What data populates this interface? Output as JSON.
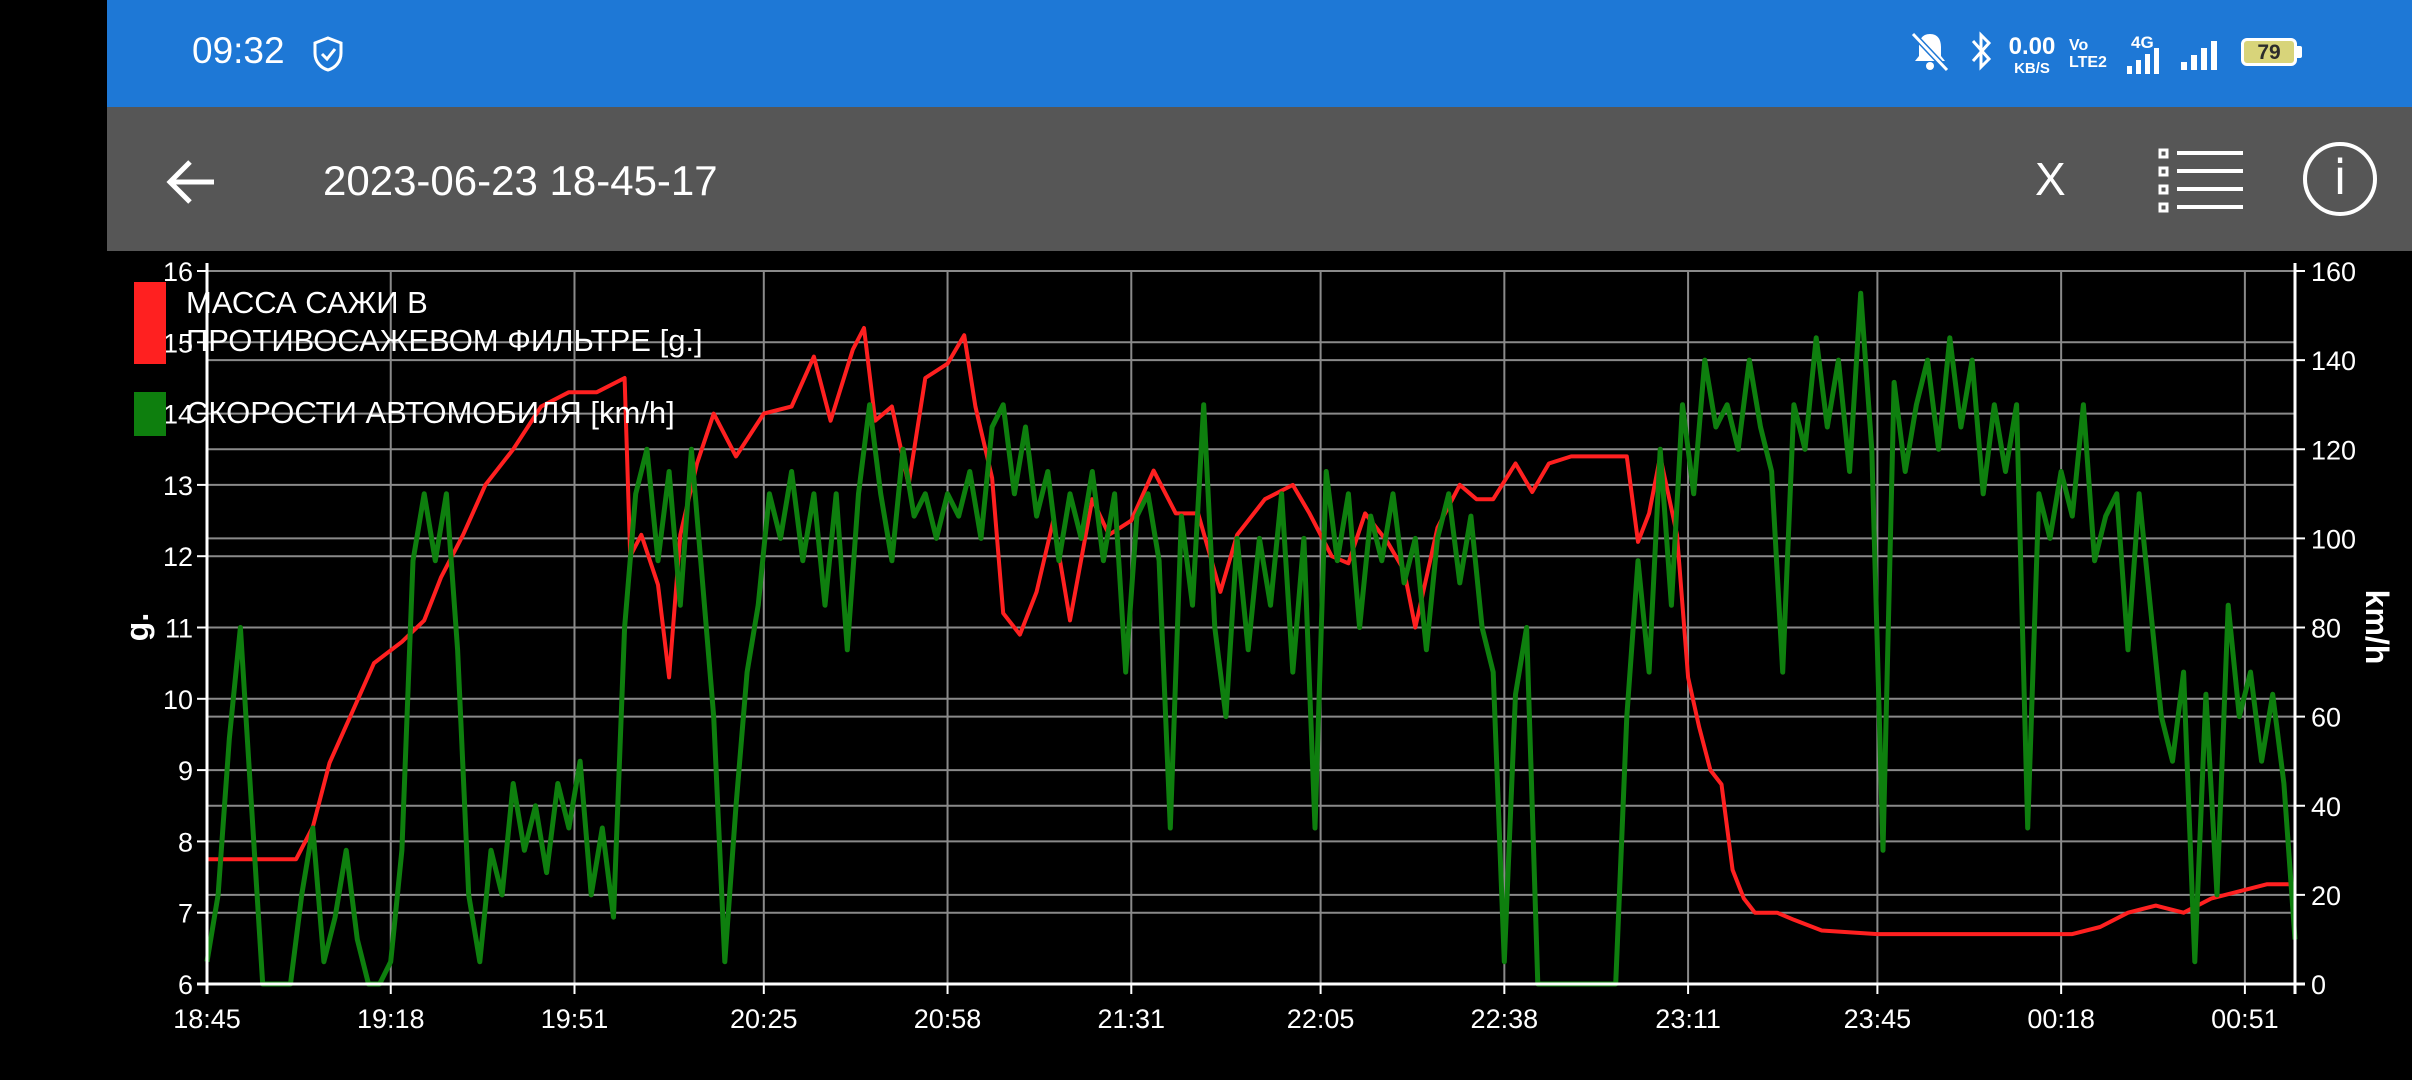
{
  "status_bar": {
    "time": "09:32",
    "net_speed": "0.00",
    "net_unit": "KB/S",
    "volte_top": "Vo",
    "volte_bottom": "LTE2",
    "network": "4G",
    "battery": "79",
    "icons": [
      "shield-check-icon",
      "bell-off-icon",
      "bluetooth-icon",
      "signal-icon",
      "signal-icon",
      "battery-icon"
    ],
    "color": "#1e78d6"
  },
  "app_bar": {
    "title": "2023-06-23 18-45-17",
    "close_label": "X",
    "info_label": "i",
    "icons": [
      "back-arrow-icon",
      "list-icon",
      "info-icon"
    ],
    "color": "#565656"
  },
  "chart_data": {
    "type": "line",
    "grid": true,
    "background": "#000000",
    "x_ticks": [
      "18:45",
      "19:18",
      "19:51",
      "20:25",
      "20:58",
      "21:31",
      "22:05",
      "22:38",
      "23:11",
      "23:45",
      "00:18",
      "00:51"
    ],
    "x_range": [
      "18:45",
      "01:00"
    ],
    "y_left": {
      "label": "g.",
      "range": [
        6,
        16
      ],
      "ticks": [
        6,
        7,
        8,
        9,
        10,
        11,
        12,
        13,
        14,
        15,
        16
      ]
    },
    "y_right": {
      "label": "km/h",
      "range": [
        0,
        160
      ],
      "ticks": [
        0,
        20,
        40,
        60,
        80,
        100,
        120,
        140,
        160
      ]
    },
    "legend_position": "top-left",
    "series": [
      {
        "name": "МАССА САЖИ В ПРОТИВОСАЖЕВОМ ФИЛЬТРЕ [g.]",
        "legend_lines": [
          "МАССА САЖИ В",
          "ПРОТИВОСАЖЕВОМ ФИЛЬТРЕ [g.]"
        ],
        "axis": "left",
        "color": "#ff2020",
        "points": [
          [
            "18:45",
            7.75
          ],
          [
            "19:01",
            7.75
          ],
          [
            "19:04",
            8.2
          ],
          [
            "19:07",
            9.1
          ],
          [
            "19:11",
            9.8
          ],
          [
            "19:15",
            10.5
          ],
          [
            "19:20",
            10.8
          ],
          [
            "19:24",
            11.1
          ],
          [
            "19:27",
            11.7
          ],
          [
            "19:31",
            12.3
          ],
          [
            "19:35",
            13.0
          ],
          [
            "19:40",
            13.5
          ],
          [
            "19:45",
            14.1
          ],
          [
            "19:50",
            14.3
          ],
          [
            "19:55",
            14.3
          ],
          [
            "20:00",
            14.5
          ],
          [
            "20:01",
            12.0
          ],
          [
            "20:03",
            12.3
          ],
          [
            "20:06",
            11.6
          ],
          [
            "20:08",
            10.3
          ],
          [
            "20:10",
            12.3
          ],
          [
            "20:13",
            13.3
          ],
          [
            "20:16",
            14.0
          ],
          [
            "20:20",
            13.4
          ],
          [
            "20:25",
            14.0
          ],
          [
            "20:30",
            14.1
          ],
          [
            "20:34",
            14.8
          ],
          [
            "20:37",
            13.9
          ],
          [
            "20:41",
            14.9
          ],
          [
            "20:43",
            15.2
          ],
          [
            "20:45",
            13.9
          ],
          [
            "20:48",
            14.1
          ],
          [
            "20:51",
            13.0
          ],
          [
            "20:54",
            14.5
          ],
          [
            "20:58",
            14.7
          ],
          [
            "21:01",
            15.1
          ],
          [
            "21:03",
            14.1
          ],
          [
            "21:06",
            13.1
          ],
          [
            "21:08",
            11.2
          ],
          [
            "21:11",
            10.9
          ],
          [
            "21:14",
            11.5
          ],
          [
            "21:17",
            12.5
          ],
          [
            "21:20",
            11.1
          ],
          [
            "21:24",
            12.8
          ],
          [
            "21:27",
            12.3
          ],
          [
            "21:31",
            12.5
          ],
          [
            "21:35",
            13.2
          ],
          [
            "21:39",
            12.6
          ],
          [
            "21:43",
            12.6
          ],
          [
            "21:47",
            11.5
          ],
          [
            "21:50",
            12.3
          ],
          [
            "21:55",
            12.8
          ],
          [
            "22:00",
            13.0
          ],
          [
            "22:03",
            12.6
          ],
          [
            "22:07",
            12.0
          ],
          [
            "22:10",
            11.9
          ],
          [
            "22:13",
            12.6
          ],
          [
            "22:17",
            12.2
          ],
          [
            "22:20",
            11.8
          ],
          [
            "22:22",
            11.0
          ],
          [
            "22:26",
            12.4
          ],
          [
            "22:30",
            13.0
          ],
          [
            "22:33",
            12.8
          ],
          [
            "22:36",
            12.8
          ],
          [
            "22:40",
            13.3
          ],
          [
            "22:43",
            12.9
          ],
          [
            "22:46",
            13.3
          ],
          [
            "22:50",
            13.4
          ],
          [
            "22:55",
            13.4
          ],
          [
            "23:00",
            13.4
          ],
          [
            "23:02",
            12.2
          ],
          [
            "23:04",
            12.6
          ],
          [
            "23:06",
            13.4
          ],
          [
            "23:09",
            12.3
          ],
          [
            "23:11",
            10.3
          ],
          [
            "23:13",
            9.6
          ],
          [
            "23:15",
            9.0
          ],
          [
            "23:17",
            8.8
          ],
          [
            "23:19",
            7.6
          ],
          [
            "23:21",
            7.2
          ],
          [
            "23:23",
            7.0
          ],
          [
            "23:27",
            7.0
          ],
          [
            "23:30",
            6.9
          ],
          [
            "23:35",
            6.75
          ],
          [
            "23:45",
            6.7
          ],
          [
            "23:55",
            6.7
          ],
          [
            "00:05",
            6.7
          ],
          [
            "00:15",
            6.7
          ],
          [
            "00:20",
            6.7
          ],
          [
            "00:25",
            6.8
          ],
          [
            "00:30",
            7.0
          ],
          [
            "00:35",
            7.1
          ],
          [
            "00:40",
            7.0
          ],
          [
            "00:45",
            7.2
          ],
          [
            "00:50",
            7.3
          ],
          [
            "00:55",
            7.4
          ],
          [
            "01:00",
            7.4
          ]
        ]
      },
      {
        "name": "СКОРОСТИ АВТОМОБИЛЯ [km/h]",
        "legend_lines": [
          "СКОРОСТИ АВТОМОБИЛЯ [km/h]"
        ],
        "axis": "right",
        "color": "#0e7f0e",
        "points": [
          [
            "18:45",
            5
          ],
          [
            "18:47",
            20
          ],
          [
            "18:49",
            55
          ],
          [
            "18:51",
            80
          ],
          [
            "18:53",
            40
          ],
          [
            "18:55",
            0
          ],
          [
            "18:57",
            0
          ],
          [
            "19:00",
            0
          ],
          [
            "19:02",
            20
          ],
          [
            "19:04",
            35
          ],
          [
            "19:06",
            5
          ],
          [
            "19:08",
            15
          ],
          [
            "19:10",
            30
          ],
          [
            "19:12",
            10
          ],
          [
            "19:14",
            0
          ],
          [
            "19:16",
            0
          ],
          [
            "19:18",
            5
          ],
          [
            "19:20",
            30
          ],
          [
            "19:22",
            95
          ],
          [
            "19:24",
            110
          ],
          [
            "19:26",
            95
          ],
          [
            "19:28",
            110
          ],
          [
            "19:30",
            75
          ],
          [
            "19:32",
            20
          ],
          [
            "19:34",
            5
          ],
          [
            "19:36",
            30
          ],
          [
            "19:38",
            20
          ],
          [
            "19:40",
            45
          ],
          [
            "19:42",
            30
          ],
          [
            "19:44",
            40
          ],
          [
            "19:46",
            25
          ],
          [
            "19:48",
            45
          ],
          [
            "19:50",
            35
          ],
          [
            "19:52",
            50
          ],
          [
            "19:54",
            20
          ],
          [
            "19:56",
            35
          ],
          [
            "19:58",
            15
          ],
          [
            "20:00",
            80
          ],
          [
            "20:02",
            110
          ],
          [
            "20:04",
            120
          ],
          [
            "20:06",
            95
          ],
          [
            "20:08",
            115
          ],
          [
            "20:10",
            85
          ],
          [
            "20:12",
            120
          ],
          [
            "20:14",
            90
          ],
          [
            "20:16",
            60
          ],
          [
            "20:18",
            5
          ],
          [
            "20:20",
            40
          ],
          [
            "20:22",
            70
          ],
          [
            "20:24",
            85
          ],
          [
            "20:26",
            110
          ],
          [
            "20:28",
            100
          ],
          [
            "20:30",
            115
          ],
          [
            "20:32",
            95
          ],
          [
            "20:34",
            110
          ],
          [
            "20:36",
            85
          ],
          [
            "20:38",
            110
          ],
          [
            "20:40",
            75
          ],
          [
            "20:42",
            110
          ],
          [
            "20:44",
            130
          ],
          [
            "20:46",
            110
          ],
          [
            "20:48",
            95
          ],
          [
            "20:50",
            120
          ],
          [
            "20:52",
            105
          ],
          [
            "20:54",
            110
          ],
          [
            "20:56",
            100
          ],
          [
            "20:58",
            110
          ],
          [
            "21:00",
            105
          ],
          [
            "21:02",
            115
          ],
          [
            "21:04",
            100
          ],
          [
            "21:06",
            125
          ],
          [
            "21:08",
            130
          ],
          [
            "21:10",
            110
          ],
          [
            "21:12",
            125
          ],
          [
            "21:14",
            105
          ],
          [
            "21:16",
            115
          ],
          [
            "21:18",
            95
          ],
          [
            "21:20",
            110
          ],
          [
            "21:22",
            100
          ],
          [
            "21:24",
            115
          ],
          [
            "21:26",
            95
          ],
          [
            "21:28",
            110
          ],
          [
            "21:30",
            70
          ],
          [
            "21:32",
            105
          ],
          [
            "21:34",
            110
          ],
          [
            "21:36",
            95
          ],
          [
            "21:38",
            35
          ],
          [
            "21:40",
            105
          ],
          [
            "21:42",
            85
          ],
          [
            "21:44",
            130
          ],
          [
            "21:46",
            80
          ],
          [
            "21:48",
            60
          ],
          [
            "21:50",
            100
          ],
          [
            "21:52",
            75
          ],
          [
            "21:54",
            100
          ],
          [
            "21:56",
            85
          ],
          [
            "21:58",
            110
          ],
          [
            "22:00",
            70
          ],
          [
            "22:02",
            100
          ],
          [
            "22:04",
            35
          ],
          [
            "22:06",
            115
          ],
          [
            "22:08",
            95
          ],
          [
            "22:10",
            110
          ],
          [
            "22:12",
            80
          ],
          [
            "22:14",
            105
          ],
          [
            "22:16",
            95
          ],
          [
            "22:18",
            110
          ],
          [
            "22:20",
            90
          ],
          [
            "22:22",
            100
          ],
          [
            "22:24",
            75
          ],
          [
            "22:26",
            100
          ],
          [
            "22:28",
            110
          ],
          [
            "22:30",
            90
          ],
          [
            "22:32",
            105
          ],
          [
            "22:34",
            80
          ],
          [
            "22:36",
            70
          ],
          [
            "22:38",
            5
          ],
          [
            "22:40",
            65
          ],
          [
            "22:42",
            80
          ],
          [
            "22:44",
            0
          ],
          [
            "22:46",
            0
          ],
          [
            "22:50",
            0
          ],
          [
            "22:55",
            0
          ],
          [
            "22:58",
            0
          ],
          [
            "23:00",
            60
          ],
          [
            "23:02",
            95
          ],
          [
            "23:04",
            70
          ],
          [
            "23:06",
            120
          ],
          [
            "23:08",
            85
          ],
          [
            "23:10",
            130
          ],
          [
            "23:12",
            110
          ],
          [
            "23:14",
            140
          ],
          [
            "23:16",
            125
          ],
          [
            "23:18",
            130
          ],
          [
            "23:20",
            120
          ],
          [
            "23:22",
            140
          ],
          [
            "23:24",
            125
          ],
          [
            "23:26",
            115
          ],
          [
            "23:28",
            70
          ],
          [
            "23:30",
            130
          ],
          [
            "23:32",
            120
          ],
          [
            "23:34",
            145
          ],
          [
            "23:36",
            125
          ],
          [
            "23:38",
            140
          ],
          [
            "23:40",
            115
          ],
          [
            "23:42",
            155
          ],
          [
            "23:44",
            120
          ],
          [
            "23:46",
            30
          ],
          [
            "23:48",
            135
          ],
          [
            "23:50",
            115
          ],
          [
            "23:52",
            130
          ],
          [
            "23:54",
            140
          ],
          [
            "23:56",
            120
          ],
          [
            "23:58",
            145
          ],
          [
            "00:00",
            125
          ],
          [
            "00:02",
            140
          ],
          [
            "00:04",
            110
          ],
          [
            "00:06",
            130
          ],
          [
            "00:08",
            115
          ],
          [
            "00:10",
            130
          ],
          [
            "00:12",
            35
          ],
          [
            "00:14",
            110
          ],
          [
            "00:16",
            100
          ],
          [
            "00:18",
            115
          ],
          [
            "00:20",
            105
          ],
          [
            "00:22",
            130
          ],
          [
            "00:24",
            95
          ],
          [
            "00:26",
            105
          ],
          [
            "00:28",
            110
          ],
          [
            "00:30",
            75
          ],
          [
            "00:32",
            110
          ],
          [
            "00:34",
            85
          ],
          [
            "00:36",
            60
          ],
          [
            "00:38",
            50
          ],
          [
            "00:40",
            70
          ],
          [
            "00:42",
            5
          ],
          [
            "00:44",
            65
          ],
          [
            "00:46",
            20
          ],
          [
            "00:48",
            85
          ],
          [
            "00:50",
            60
          ],
          [
            "00:52",
            70
          ],
          [
            "00:54",
            50
          ],
          [
            "00:56",
            65
          ],
          [
            "00:58",
            45
          ],
          [
            "01:00",
            10
          ]
        ]
      }
    ]
  }
}
